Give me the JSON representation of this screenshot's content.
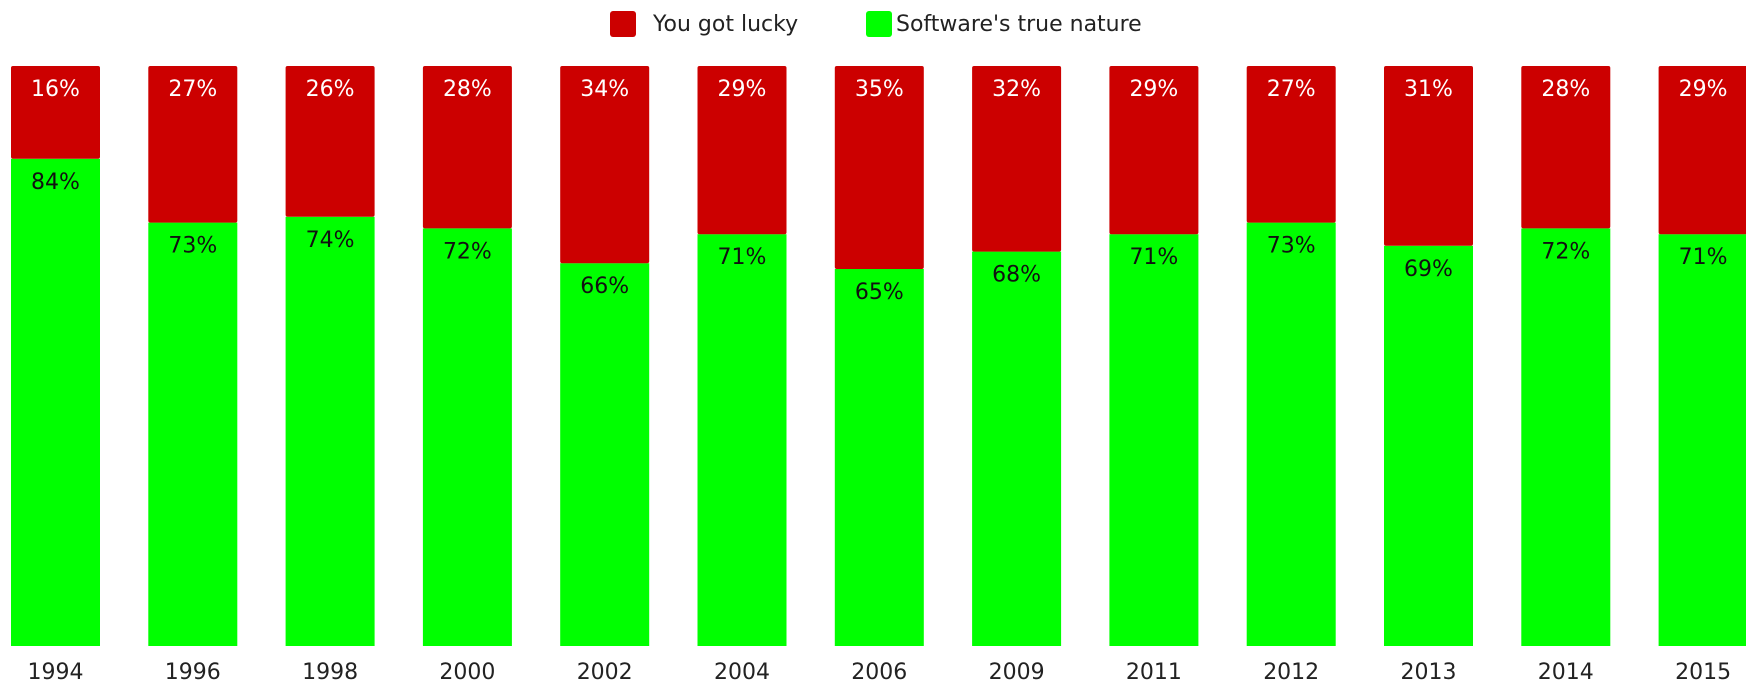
{
  "chart_data": {
    "type": "stacked_bar",
    "categories": [
      "1994",
      "1996",
      "1998",
      "2000",
      "2002",
      "2004",
      "2006",
      "2009",
      "2011",
      "2012",
      "2013",
      "2014",
      "2015"
    ],
    "series": [
      {
        "name": "Software's true nature",
        "color": "#00ff00",
        "values": [
          84,
          73,
          74,
          72,
          66,
          71,
          65,
          68,
          71,
          73,
          69,
          72,
          71
        ],
        "value_labels": [
          "84%",
          "73%",
          "74%",
          "72%",
          "66%",
          "71%",
          "65%",
          "68%",
          "71%",
          "73%",
          "69%",
          "72%",
          "71%"
        ]
      },
      {
        "name": "You got lucky",
        "color": "#cc0000",
        "values": [
          16,
          27,
          26,
          28,
          34,
          29,
          35,
          32,
          29,
          27,
          31,
          28,
          29
        ],
        "value_labels": [
          "16%",
          "27%",
          "26%",
          "28%",
          "34%",
          "29%",
          "35%",
          "32%",
          "29%",
          "27%",
          "31%",
          "28%",
          "29%"
        ]
      }
    ],
    "ylim": [
      0,
      100
    ],
    "legend": "top"
  }
}
